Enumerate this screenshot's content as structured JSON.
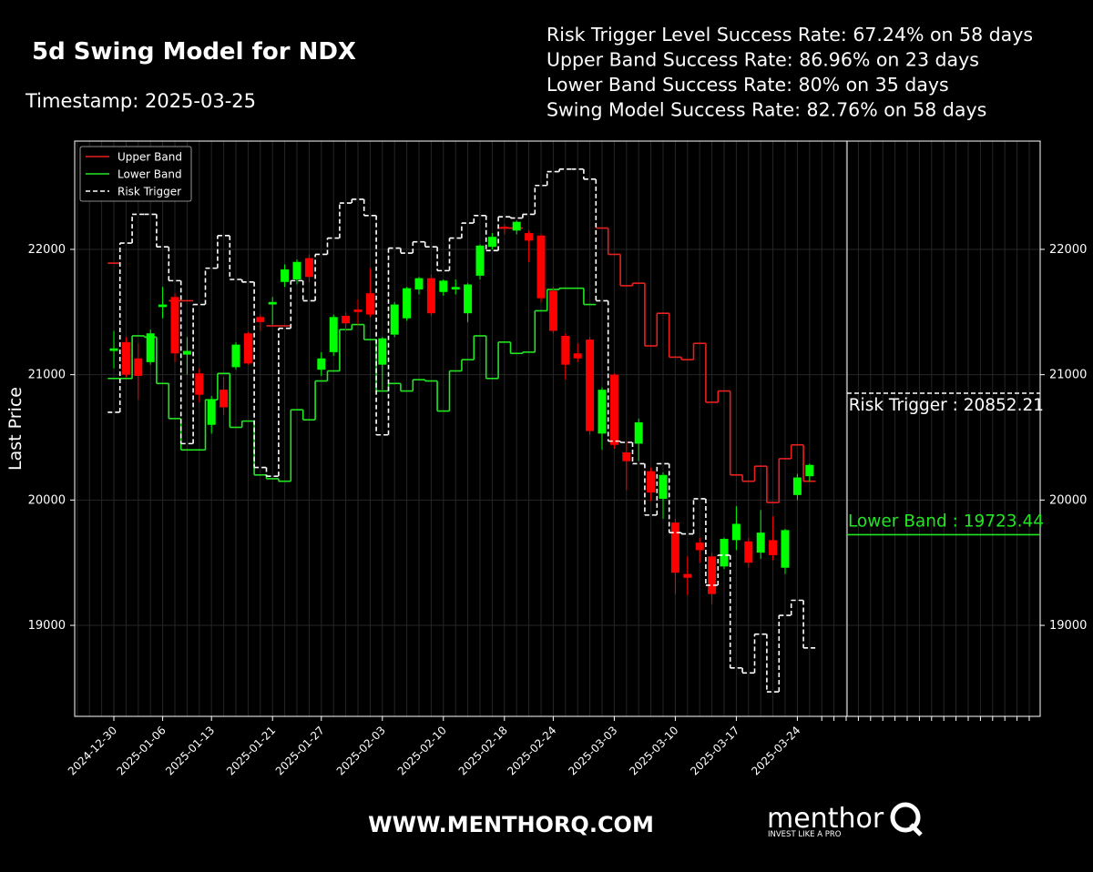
{
  "header": {
    "title": "5d Swing Model for NDX",
    "timestamp": "Timestamp: 2025-03-25",
    "stats": [
      "Risk Trigger Level Success Rate: 67.24% on 58 days",
      "Upper Band Success Rate: 86.96% on 23 days",
      "Lower Band Success Rate: 80% on 35 days",
      "Swing Model Success Rate: 82.76% on 58 days"
    ]
  },
  "chart_data": {
    "type": "candlestick",
    "ylabel": "Last Price",
    "x": [
      "2024-12-30",
      "2024-12-31",
      "2025-01-02",
      "2025-01-03",
      "2025-01-06",
      "2025-01-07",
      "2025-01-08",
      "2025-01-10",
      "2025-01-13",
      "2025-01-14",
      "2025-01-15",
      "2025-01-16",
      "2025-01-17",
      "2025-01-21",
      "2025-01-22",
      "2025-01-23",
      "2025-01-24",
      "2025-01-27",
      "2025-01-28",
      "2025-01-29",
      "2025-01-30",
      "2025-01-31",
      "2025-02-03",
      "2025-02-04",
      "2025-02-05",
      "2025-02-06",
      "2025-02-07",
      "2025-02-10",
      "2025-02-11",
      "2025-02-12",
      "2025-02-13",
      "2025-02-14",
      "2025-02-18",
      "2025-02-19",
      "2025-02-20",
      "2025-02-21",
      "2025-02-24",
      "2025-02-25",
      "2025-02-26",
      "2025-02-27",
      "2025-02-28",
      "2025-03-03",
      "2025-03-04",
      "2025-03-05",
      "2025-03-06",
      "2025-03-07",
      "2025-03-10",
      "2025-03-11",
      "2025-03-12",
      "2025-03-13",
      "2025-03-14",
      "2025-03-17",
      "2025-03-18",
      "2025-03-19",
      "2025-03-20",
      "2025-03-21",
      "2025-03-24",
      "2025-03-25"
    ],
    "open": [
      21190,
      21260,
      21130,
      21100,
      21540,
      21620,
      21160,
      21010,
      20600,
      20880,
      21060,
      21330,
      21460,
      21560,
      21740,
      21760,
      21930,
      21040,
      21180,
      21470,
      21520,
      21650,
      21080,
      21320,
      21450,
      21680,
      21770,
      21660,
      21680,
      21490,
      21790,
      22020,
      22180,
      22150,
      22130,
      22110,
      21670,
      21310,
      21170,
      21280,
      20530,
      21000,
      20380,
      20450,
      20230,
      20010,
      19820,
      19410,
      19660,
      19550,
      19470,
      19680,
      19670,
      19580,
      19680,
      19460,
      20040,
      20190
    ],
    "high": [
      21350,
      21300,
      21250,
      21360,
      21700,
      21650,
      21300,
      21050,
      20830,
      20980,
      21260,
      21340,
      21480,
      21620,
      21880,
      21920,
      21960,
      21180,
      21480,
      21500,
      21600,
      21850,
      21300,
      21580,
      21700,
      21780,
      21800,
      21760,
      21760,
      21730,
      22040,
      22130,
      22200,
      22230,
      22150,
      22120,
      21700,
      21330,
      21250,
      21300,
      20900,
      21010,
      20470,
      20650,
      20260,
      20220,
      19850,
      19550,
      19700,
      19580,
      19700,
      19950,
      19700,
      19920,
      19870,
      19770,
      20210,
      20290
    ],
    "low": [
      21050,
      20980,
      20800,
      21080,
      21450,
      21100,
      21000,
      20780,
      20530,
      20680,
      21040,
      21080,
      21350,
      21400,
      21700,
      21720,
      21740,
      20990,
      21150,
      21350,
      21400,
      21460,
      20880,
      21300,
      21430,
      21640,
      21470,
      21630,
      21640,
      21420,
      21760,
      22000,
      22120,
      22120,
      21900,
      21580,
      21330,
      20960,
      21100,
      20520,
      20400,
      20410,
      20080,
      20310,
      19990,
      19850,
      19250,
      19240,
      19500,
      19170,
      19450,
      19600,
      19460,
      19530,
      19520,
      19410,
      20000,
      20150
    ],
    "close": [
      21210,
      21000,
      20990,
      21330,
      21560,
      21170,
      21190,
      20840,
      20800,
      20740,
      21240,
      21090,
      21420,
      21580,
      21840,
      21900,
      21780,
      21130,
      21460,
      21410,
      21500,
      21480,
      21290,
      21560,
      21690,
      21770,
      21490,
      21750,
      21700,
      21720,
      22030,
      22100,
      22170,
      22220,
      22070,
      21610,
      21350,
      21080,
      21130,
      20550,
      20880,
      20440,
      20310,
      20620,
      20060,
      20200,
      19420,
      19380,
      19600,
      19250,
      19690,
      19810,
      19500,
      19740,
      19560,
      19760,
      20180,
      20280
    ],
    "up_color": "#00ff00",
    "down_color": "#ff0000",
    "series": [
      {
        "name": "Upper Band",
        "color": "#e8201e",
        "dashed": false,
        "values": [
          21890,
          null,
          null,
          null,
          null,
          21590,
          21590,
          null,
          null,
          null,
          null,
          null,
          null,
          21390,
          21390,
          null,
          null,
          null,
          null,
          null,
          null,
          null,
          null,
          null,
          null,
          null,
          null,
          null,
          null,
          null,
          null,
          null,
          22170,
          22170,
          null,
          null,
          null,
          null,
          null,
          null,
          22170,
          21960,
          21710,
          21730,
          21230,
          21490,
          21140,
          21120,
          21250,
          20780,
          20870,
          20200,
          20150,
          20270,
          19980,
          20330,
          20440,
          20150
        ]
      },
      {
        "name": "Lower Band",
        "color": "#22e622",
        "dashed": false,
        "values": [
          20970,
          20970,
          21310,
          21300,
          20930,
          20650,
          20400,
          20400,
          20800,
          21010,
          20580,
          20630,
          20200,
          20170,
          20150,
          20720,
          20640,
          20950,
          21030,
          21360,
          21400,
          21280,
          20870,
          20930,
          20870,
          20960,
          20950,
          20710,
          21030,
          21120,
          21310,
          20970,
          21260,
          21170,
          21180,
          21510,
          21680,
          21690,
          21690,
          21560,
          null,
          null,
          null,
          null,
          null,
          null,
          null,
          null,
          null,
          null,
          null,
          null,
          null,
          null,
          null,
          null,
          null,
          null
        ]
      },
      {
        "name": "Risk Trigger",
        "color": "#ffffff",
        "dashed": true,
        "values": [
          20700,
          22050,
          22280,
          22280,
          22020,
          21750,
          20450,
          21560,
          21850,
          22110,
          21760,
          21740,
          20260,
          20190,
          21370,
          21750,
          21590,
          21960,
          22090,
          22370,
          22400,
          22270,
          20520,
          22010,
          21970,
          22060,
          22020,
          21830,
          22090,
          22210,
          22270,
          21990,
          22260,
          22250,
          22280,
          22510,
          22620,
          22640,
          22640,
          22560,
          21590,
          20470,
          20460,
          20290,
          19880,
          20290,
          19740,
          19730,
          20010,
          19320,
          19560,
          18660,
          18620,
          18930,
          18470,
          19080,
          19200,
          18820
        ]
      }
    ],
    "projections": [
      {
        "name": "Risk Trigger",
        "value": 20852.21,
        "label": "Risk Trigger : 20852.21",
        "color": "#ffffff",
        "dashed": true
      },
      {
        "name": "Lower Band",
        "value": 19723.44,
        "label": "Lower Band : 19723.44",
        "color": "#22e622",
        "dashed": false
      }
    ],
    "xticks": [
      "2024-12-30",
      "2025-01-06",
      "2025-01-13",
      "2025-01-21",
      "2025-01-27",
      "2025-02-03",
      "2025-02-10",
      "2025-02-18",
      "2025-02-24",
      "2025-03-03",
      "2025-03-10",
      "2025-03-17",
      "2025-03-24"
    ],
    "ylim": [
      18274,
      22864
    ],
    "yticks": [
      19000,
      20000,
      21000,
      22000
    ],
    "grid": true,
    "legend": "upper left"
  },
  "footer": {
    "website": "WWW.MENTHORQ.COM",
    "brand": "menthor",
    "brand_letter": "Q",
    "tagline": "INVEST LIKE A PRO"
  }
}
